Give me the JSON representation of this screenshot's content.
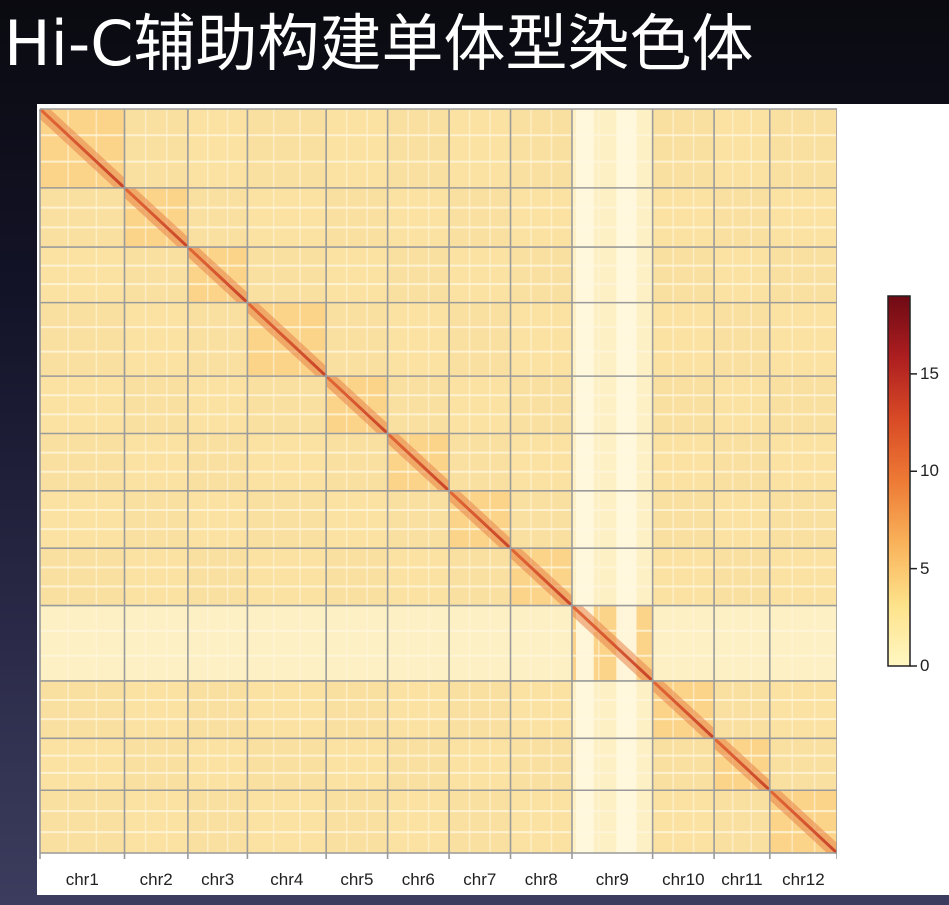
{
  "slide": {
    "title": "Hi-C辅助构建单体型染色体"
  },
  "chart_data": {
    "type": "heatmap",
    "title": "",
    "xlabel": "",
    "ylabel": "",
    "categories": [
      "chr1",
      "chr2",
      "chr3",
      "chr4",
      "chr5",
      "chr6",
      "chr7",
      "chr8",
      "chr9",
      "chr10",
      "chr11",
      "chr12"
    ],
    "chromosome_relative_sizes": [
      2.2,
      1.65,
      1.55,
      2.05,
      1.6,
      1.6,
      1.6,
      1.6,
      2.1,
      1.6,
      1.45,
      1.75
    ],
    "colorbar": {
      "min": 0,
      "max": 19,
      "ticks": [
        0,
        5,
        10,
        15
      ],
      "tick_labels": [
        "0",
        "5",
        "10",
        "15"
      ],
      "colors": [
        "#fff7c2",
        "#fde28a",
        "#f9b25a",
        "#ed7a35",
        "#d94a26",
        "#ad1e20",
        "#6e0a14"
      ]
    },
    "grid": true,
    "legend_position": "right"
  }
}
